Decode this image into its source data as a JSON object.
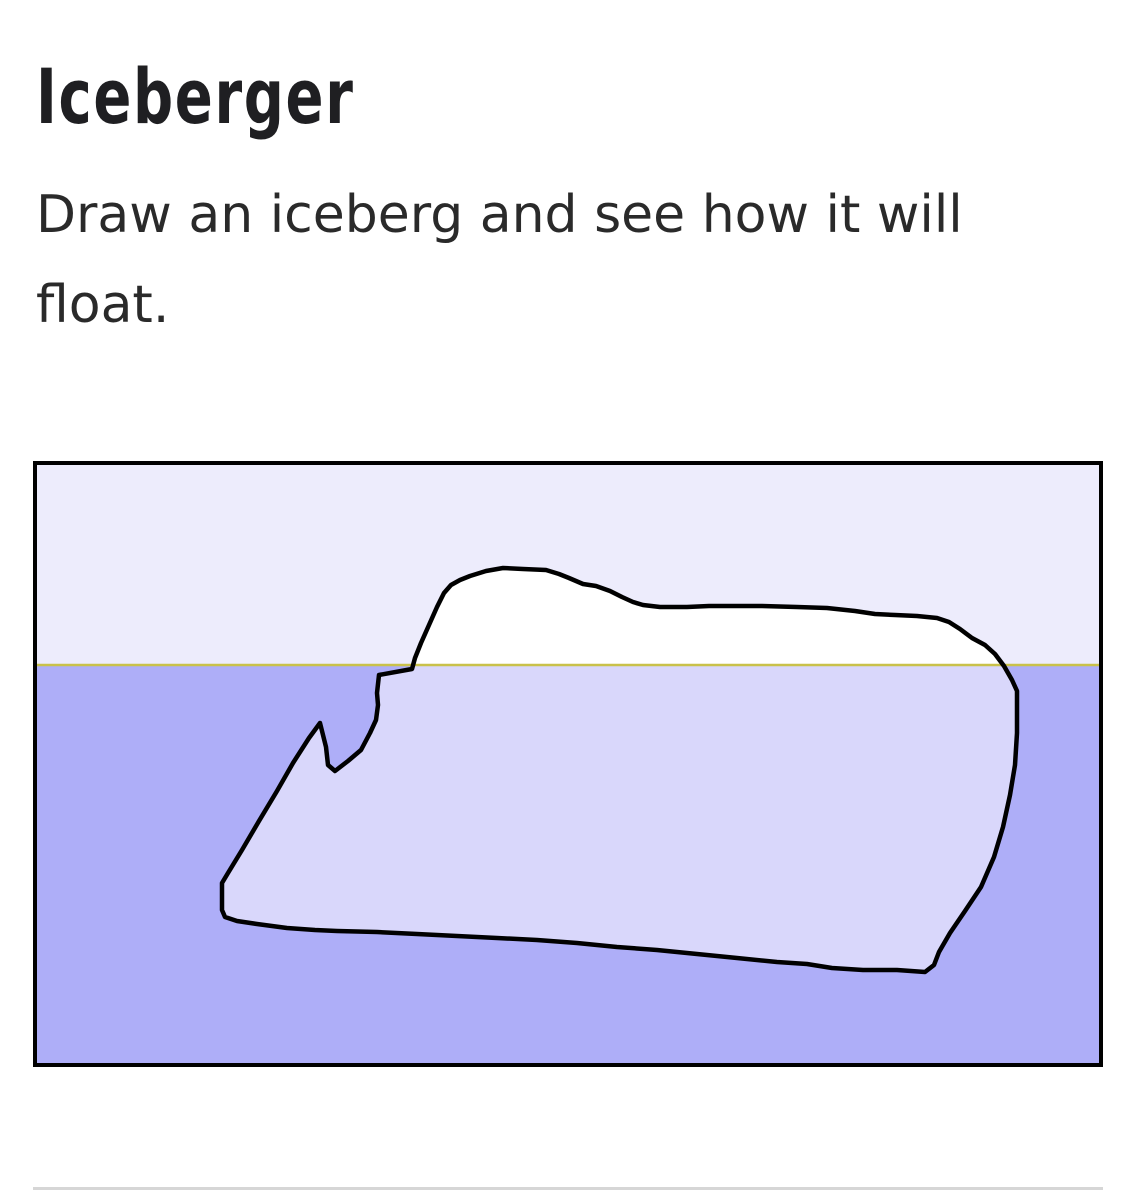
{
  "app": {
    "title": "Iceberger",
    "description": "Draw an iceberg and see how it will float."
  },
  "simulation": {
    "colors": {
      "sky": "#edecfc",
      "water": "#aeaef8",
      "waterline": "#c9c14a",
      "ice_above_water": "#ffffff",
      "ice_below_water": "#d9d7fb",
      "outline": "#000000"
    }
  }
}
